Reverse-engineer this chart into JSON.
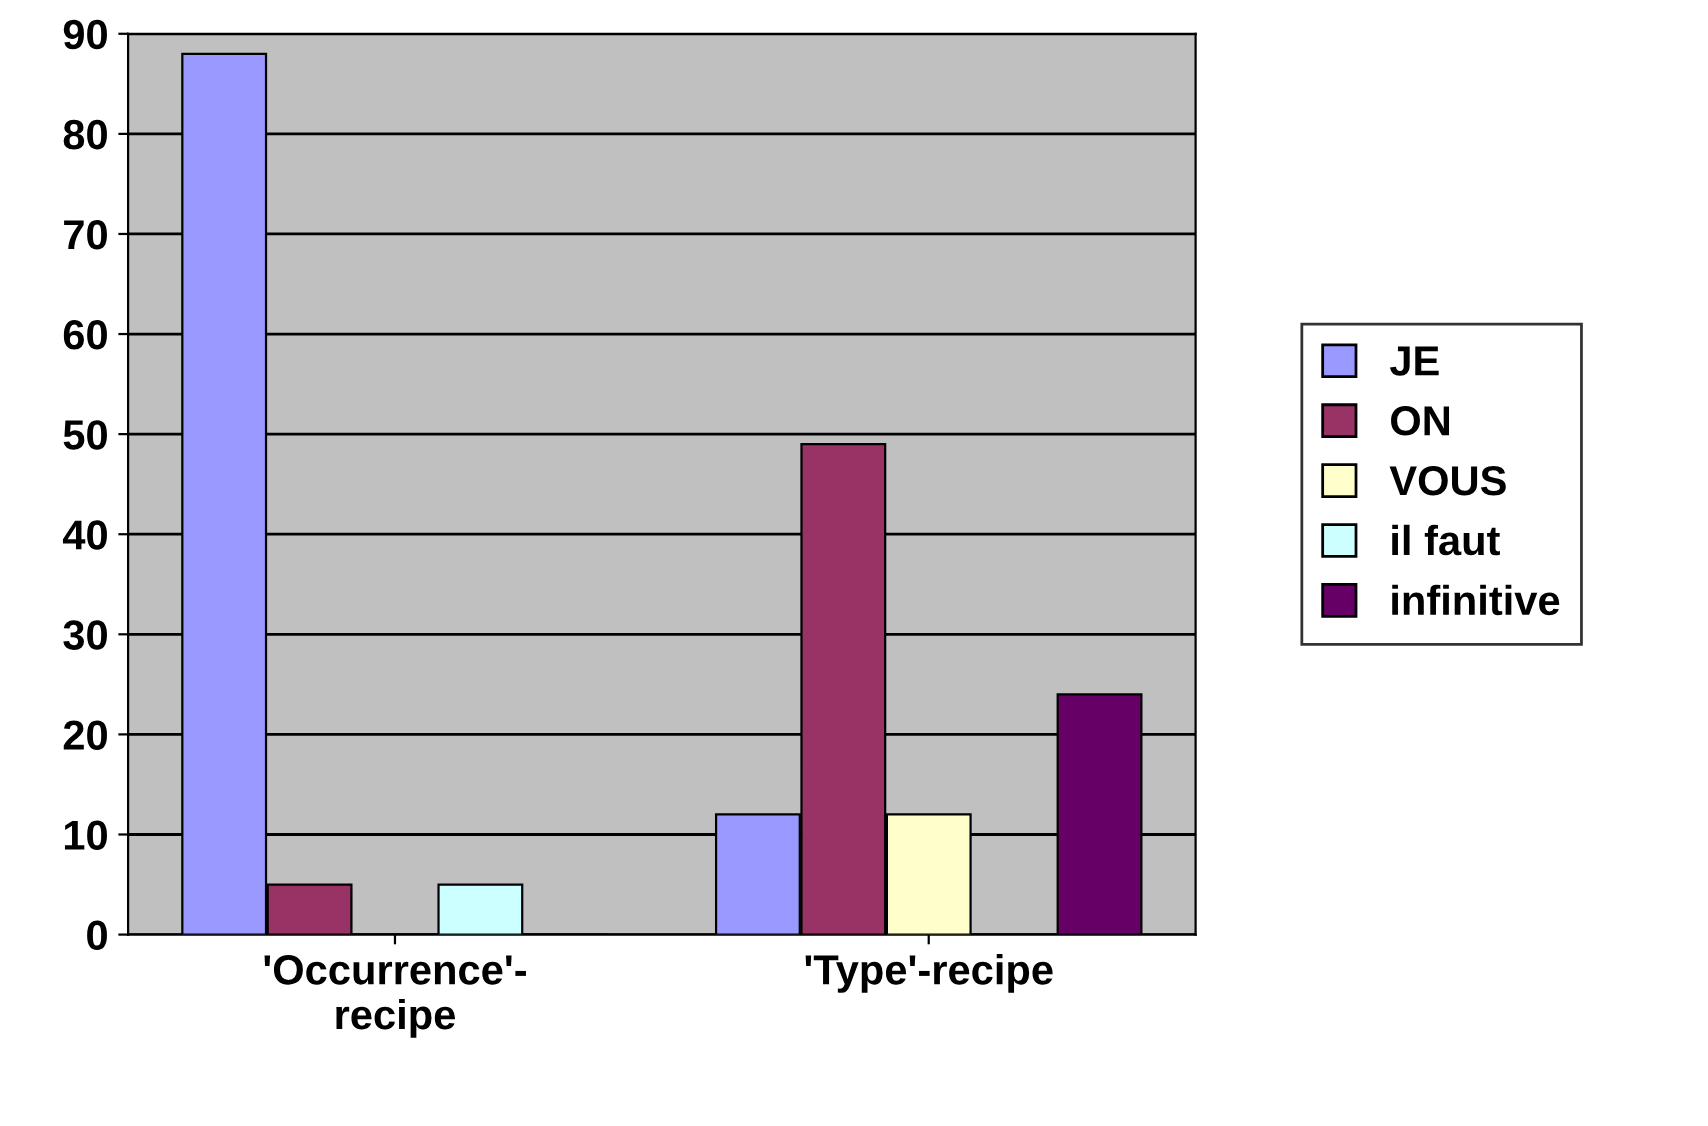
{
  "chart_data": {
    "type": "bar",
    "categories": [
      "'Occurrence'-\nrecipe",
      "'Type'-recipe"
    ],
    "series": [
      {
        "name": "JE",
        "color": "#9999ff",
        "values": [
          88,
          12
        ]
      },
      {
        "name": "ON",
        "color": "#993366",
        "values": [
          5,
          49
        ]
      },
      {
        "name": "VOUS",
        "color": "#ffffcc",
        "values": [
          0,
          12
        ]
      },
      {
        "name": "il faut",
        "color": "#ccffff",
        "values": [
          5,
          0
        ]
      },
      {
        "name": "infinitive",
        "color": "#660066",
        "values": [
          0,
          24
        ]
      }
    ],
    "ylim": [
      0,
      90
    ],
    "yticks": [
      0,
      10,
      20,
      30,
      40,
      50,
      60,
      70,
      80,
      90
    ],
    "grid": "y",
    "legend": "right"
  }
}
